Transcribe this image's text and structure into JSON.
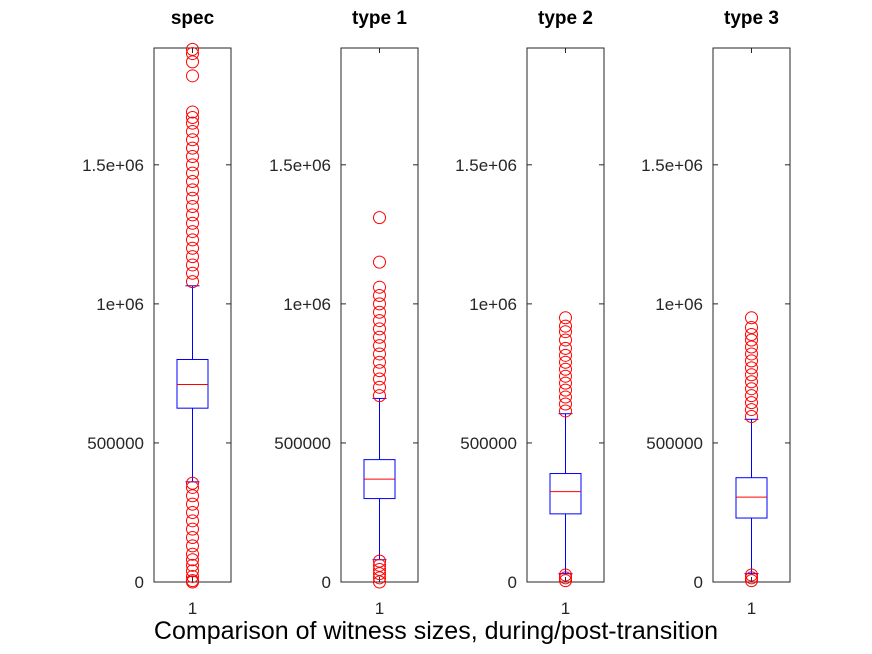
{
  "figure": {
    "caption": "Comparison of witness sizes, during/post-transition"
  },
  "chart_data": [
    {
      "type": "box",
      "title": "spec",
      "categories": [
        "1"
      ],
      "ylim": [
        0,
        1920000
      ],
      "yticks": [
        0,
        500000,
        1000000,
        1500000
      ],
      "ytick_labels": [
        "0",
        "500000",
        "1e+06",
        "1.5e+06"
      ],
      "grid": false,
      "box": {
        "whisker_low": 360000,
        "q1": 625000,
        "median": 710000,
        "q3": 800000,
        "whisker_high": 1065000
      },
      "outliers_high": [
        1080000,
        1110000,
        1140000,
        1170000,
        1200000,
        1230000,
        1260000,
        1290000,
        1320000,
        1350000,
        1380000,
        1410000,
        1440000,
        1470000,
        1500000,
        1530000,
        1560000,
        1590000,
        1620000,
        1650000,
        1670000,
        1690000,
        1820000,
        1870000,
        1900000,
        1915000
      ],
      "outliers_low": [
        0,
        5000,
        20000,
        40000,
        60000,
        80000,
        100000,
        130000,
        160000,
        190000,
        220000,
        250000,
        280000,
        310000,
        340000,
        355000
      ]
    },
    {
      "type": "box",
      "title": "type 1",
      "categories": [
        "1"
      ],
      "ylim": [
        0,
        1920000
      ],
      "yticks": [
        0,
        500000,
        1000000,
        1500000
      ],
      "ytick_labels": [
        "0",
        "500000",
        "1e+06",
        "1.5e+06"
      ],
      "grid": false,
      "box": {
        "whisker_low": 80000,
        "q1": 300000,
        "median": 370000,
        "q3": 440000,
        "whisker_high": 660000
      },
      "outliers_high": [
        670000,
        700000,
        730000,
        760000,
        790000,
        820000,
        850000,
        880000,
        910000,
        940000,
        970000,
        1000000,
        1030000,
        1060000,
        1150000,
        1310000
      ],
      "outliers_low": [
        0,
        15000,
        30000,
        45000,
        60000,
        75000
      ]
    },
    {
      "type": "box",
      "title": "type 2",
      "categories": [
        "1"
      ],
      "ylim": [
        0,
        1920000
      ],
      "yticks": [
        0,
        500000,
        1000000,
        1500000
      ],
      "ytick_labels": [
        "0",
        "500000",
        "1e+06",
        "1.5e+06"
      ],
      "grid": false,
      "box": {
        "whisker_low": 30000,
        "q1": 245000,
        "median": 325000,
        "q3": 390000,
        "whisker_high": 605000
      },
      "outliers_high": [
        615000,
        640000,
        665000,
        690000,
        715000,
        740000,
        765000,
        790000,
        815000,
        840000,
        870000,
        900000,
        920000,
        950000
      ],
      "outliers_low": [
        5000,
        15000,
        25000
      ]
    },
    {
      "type": "box",
      "title": "type 3",
      "categories": [
        "1"
      ],
      "ylim": [
        0,
        1920000
      ],
      "yticks": [
        0,
        500000,
        1000000,
        1500000
      ],
      "ytick_labels": [
        "0",
        "500000",
        "1e+06",
        "1.5e+06"
      ],
      "grid": false,
      "box": {
        "whisker_low": 30000,
        "q1": 230000,
        "median": 305000,
        "q3": 375000,
        "whisker_high": 585000
      },
      "outliers_high": [
        595000,
        620000,
        645000,
        670000,
        695000,
        720000,
        745000,
        770000,
        795000,
        820000,
        845000,
        870000,
        890000,
        915000,
        950000
      ],
      "outliers_low": [
        5000,
        15000,
        25000
      ]
    }
  ]
}
